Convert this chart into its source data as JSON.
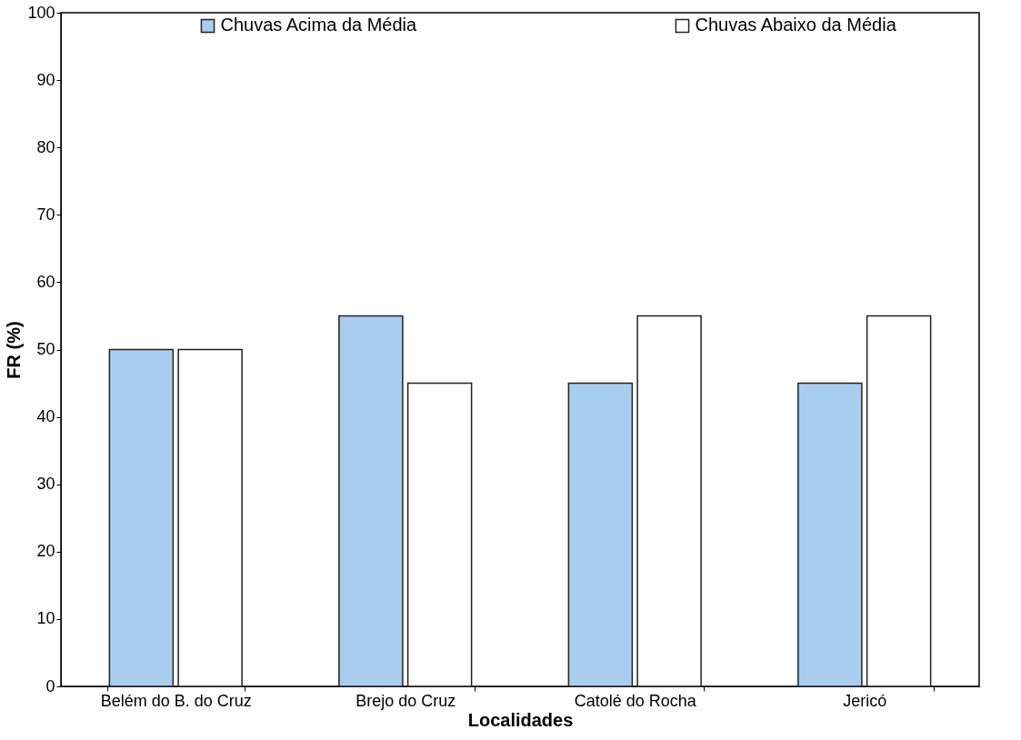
{
  "chart_data": {
    "type": "bar",
    "xlabel": "Localidades",
    "ylabel": "FR (%)",
    "categories": [
      "Belém do B. do Cruz",
      "Brejo do Cruz",
      "Catolé do Rocha",
      "Jericó"
    ],
    "series": [
      {
        "name": "Chuvas Acima da Média",
        "color": "#a9cdef",
        "values": [
          50,
          55,
          45,
          45
        ]
      },
      {
        "name": "Chuvas Abaixo da Média",
        "color": "#ffffff",
        "values": [
          50,
          45,
          55,
          55
        ]
      }
    ],
    "ylim": [
      0,
      100
    ],
    "yticks": [
      0,
      10,
      20,
      30,
      40,
      50,
      60,
      70,
      80,
      90,
      100
    ],
    "grid": false,
    "legend": "top"
  }
}
